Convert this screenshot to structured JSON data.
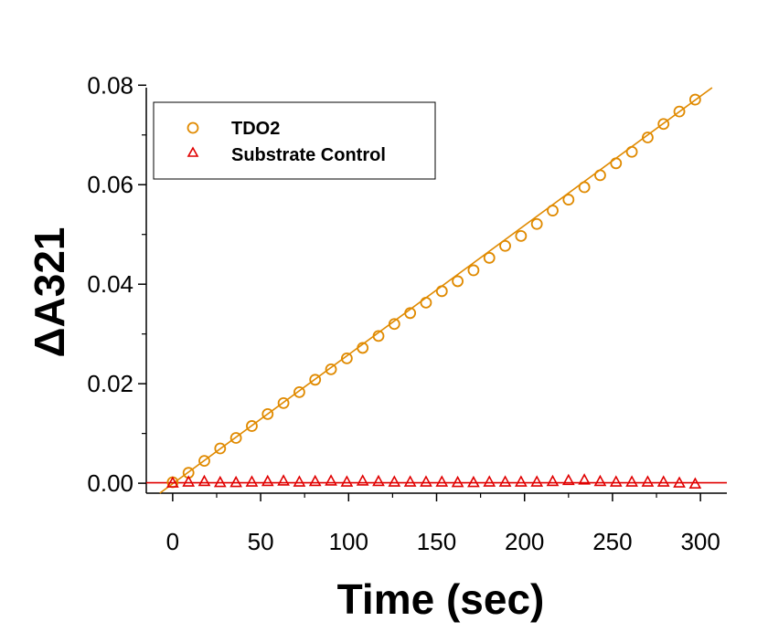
{
  "chart_data": {
    "type": "scatter",
    "xlabel": "Time (sec)",
    "ylabel": "ΔA321",
    "xlim": [
      -15,
      315
    ],
    "ylim": [
      -0.002,
      0.0795
    ],
    "xticks": [
      0,
      50,
      100,
      150,
      200,
      250,
      300
    ],
    "xtick_labels": [
      "0",
      "50",
      "100",
      "150",
      "200",
      "250",
      "300"
    ],
    "yticks": [
      0,
      0.02,
      0.04,
      0.06,
      0.08
    ],
    "ytick_labels": [
      "0.00",
      "0.02",
      "0.04",
      "0.06",
      "0.08"
    ],
    "legend_position": "top-left",
    "grid": false,
    "series": [
      {
        "name": "TDO2",
        "marker": "circle",
        "color": "#E08A00",
        "fit_line": {
          "slope": 0.0002596,
          "intercept": -0.0001
        },
        "x": [
          0,
          9,
          18,
          27,
          36,
          45,
          54,
          63,
          72,
          81,
          90,
          99,
          108,
          117,
          126,
          135,
          144,
          153,
          162,
          171,
          180,
          189,
          198,
          207,
          216,
          225,
          234,
          243,
          252,
          261,
          270,
          279,
          288,
          297
        ],
        "y": [
          0.0002,
          0.0021,
          0.0045,
          0.007,
          0.0091,
          0.0115,
          0.0139,
          0.0161,
          0.0183,
          0.0208,
          0.0229,
          0.0251,
          0.0272,
          0.0296,
          0.032,
          0.0342,
          0.0363,
          0.0386,
          0.0406,
          0.0428,
          0.0453,
          0.0477,
          0.0497,
          0.0521,
          0.0548,
          0.057,
          0.0595,
          0.0619,
          0.0643,
          0.0666,
          0.0695,
          0.0722,
          0.0747,
          0.0771
        ]
      },
      {
        "name": "Substrate Control",
        "marker": "triangle",
        "color": "#E00000",
        "fit_line": {
          "slope": 0,
          "intercept": 0.0001
        },
        "x": [
          0,
          9,
          18,
          27,
          36,
          45,
          54,
          63,
          72,
          81,
          90,
          99,
          108,
          117,
          126,
          135,
          144,
          153,
          162,
          171,
          180,
          189,
          198,
          207,
          216,
          225,
          234,
          243,
          252,
          261,
          270,
          279,
          288,
          297
        ],
        "y": [
          0.0,
          0.0002,
          0.0003,
          0.0001,
          0.0001,
          0.0002,
          0.0003,
          0.0004,
          0.0002,
          0.0003,
          0.0004,
          0.0002,
          0.0004,
          0.0003,
          0.0002,
          0.0002,
          0.0002,
          0.0002,
          0.0001,
          0.0001,
          0.0002,
          0.0002,
          0.0002,
          0.0002,
          0.0003,
          0.0005,
          0.0006,
          0.0003,
          0.0002,
          0.0002,
          0.0002,
          0.0002,
          0.0,
          -0.0002
        ]
      }
    ]
  }
}
